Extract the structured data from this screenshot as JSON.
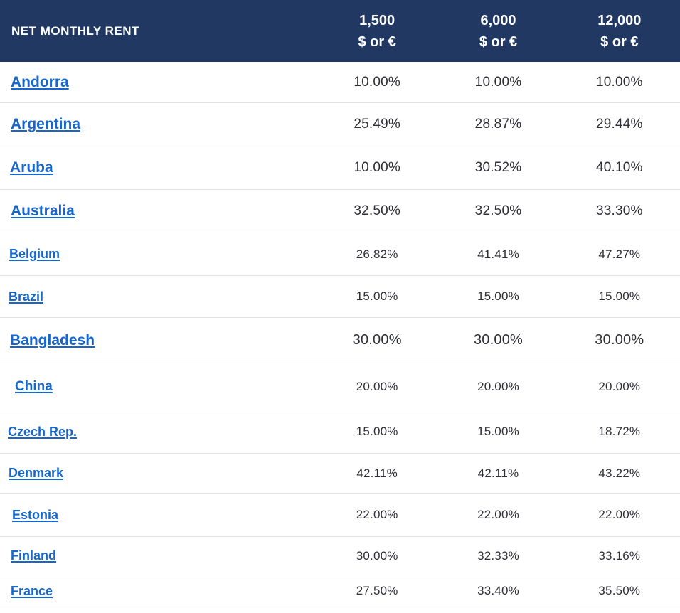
{
  "table": {
    "header": {
      "title": "NET MONTHLY RENT",
      "columns": [
        {
          "amount": "1,500",
          "currency": "$ or €"
        },
        {
          "amount": "6,000",
          "currency": "$ or €"
        },
        {
          "amount": "12,000",
          "currency": "$ or €"
        }
      ]
    },
    "rows": [
      {
        "country": "Andorra",
        "values": [
          "10.00%",
          "10.00%",
          "10.00%"
        ]
      },
      {
        "country": "Argentina",
        "values": [
          "25.49%",
          "28.87%",
          "29.44%"
        ]
      },
      {
        "country": "Aruba",
        "values": [
          "10.00%",
          "30.52%",
          "40.10%"
        ]
      },
      {
        "country": "Australia",
        "values": [
          "32.50%",
          "32.50%",
          "33.30%"
        ]
      },
      {
        "country": "Belgium",
        "values": [
          "26.82%",
          "41.41%",
          "47.27%"
        ]
      },
      {
        "country": "Brazil",
        "values": [
          "15.00%",
          "15.00%",
          "15.00%"
        ]
      },
      {
        "country": "Bangladesh",
        "values": [
          "30.00%",
          "30.00%",
          "30.00%"
        ]
      },
      {
        "country": "China",
        "values": [
          "20.00%",
          "20.00%",
          "20.00%"
        ]
      },
      {
        "country": "Czech Rep.",
        "values": [
          "15.00%",
          "15.00%",
          "18.72%"
        ]
      },
      {
        "country": "Denmark",
        "values": [
          "42.11%",
          "42.11%",
          "43.22%"
        ]
      },
      {
        "country": "Estonia",
        "values": [
          "22.00%",
          "22.00%",
          "22.00%"
        ]
      },
      {
        "country": "Finland",
        "values": [
          "30.00%",
          "32.33%",
          "33.16%"
        ]
      },
      {
        "country": "France",
        "values": [
          "27.50%",
          "33.40%",
          "35.50%"
        ]
      }
    ]
  },
  "colors": {
    "header_bg": "#213862",
    "header_text": "#ffffff",
    "link_blue": "#1766cc",
    "value_text": "#2e2e36",
    "divider": "#e2e2e5"
  },
  "chart_data": {
    "type": "table",
    "title": "NET MONTHLY RENT",
    "columns": [
      "1,500 $ or €",
      "6,000 $ or €",
      "12,000 $ or €"
    ],
    "row_labels": [
      "Andorra",
      "Argentina",
      "Aruba",
      "Australia",
      "Belgium",
      "Brazil",
      "Bangladesh",
      "China",
      "Czech Rep.",
      "Denmark",
      "Estonia",
      "Finland",
      "France"
    ],
    "values_percent": [
      [
        10.0,
        10.0,
        10.0
      ],
      [
        25.49,
        28.87,
        29.44
      ],
      [
        10.0,
        30.52,
        40.1
      ],
      [
        32.5,
        32.5,
        33.3
      ],
      [
        26.82,
        41.41,
        47.27
      ],
      [
        15.0,
        15.0,
        15.0
      ],
      [
        30.0,
        30.0,
        30.0
      ],
      [
        20.0,
        20.0,
        20.0
      ],
      [
        15.0,
        15.0,
        18.72
      ],
      [
        42.11,
        42.11,
        43.22
      ],
      [
        22.0,
        22.0,
        22.0
      ],
      [
        30.0,
        32.33,
        33.16
      ],
      [
        27.5,
        33.4,
        35.5
      ]
    ]
  }
}
